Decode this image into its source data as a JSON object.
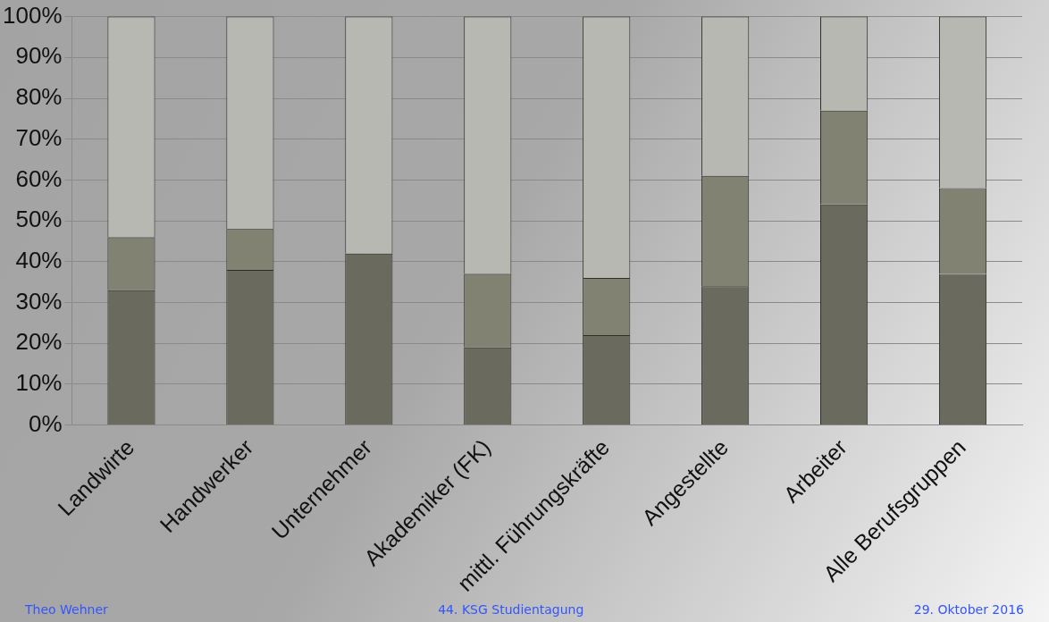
{
  "chart_data": {
    "type": "bar",
    "stacked": true,
    "categories": [
      "Landwirte",
      "Handwerker",
      "Unternehmer",
      "Akademiker (FK)",
      "mittl. Führungskräfte",
      "Angestellte",
      "Arbeiter",
      "Alle Berufsgruppen"
    ],
    "series": [
      {
        "color": "#6a6a5e",
        "values": [
          33,
          38,
          42,
          19,
          22,
          34,
          54,
          37
        ]
      },
      {
        "color": "#828273",
        "values": [
          13,
          10,
          0,
          18,
          14,
          27,
          23,
          21
        ]
      },
      {
        "color": "#b8b8b3",
        "values": [
          54,
          52,
          58,
          63,
          64,
          39,
          23,
          42
        ]
      }
    ],
    "ylim": [
      0,
      100
    ],
    "yticks": [
      {
        "value": 0,
        "label": "0%"
      },
      {
        "value": 10,
        "label": "10%"
      },
      {
        "value": 20,
        "label": "20%"
      },
      {
        "value": 30,
        "label": "30%"
      },
      {
        "value": 40,
        "label": "40%"
      },
      {
        "value": 50,
        "label": "50%"
      },
      {
        "value": 60,
        "label": "60%"
      },
      {
        "value": 70,
        "label": "70%"
      },
      {
        "value": 80,
        "label": "80%"
      },
      {
        "value": 90,
        "label": "90%"
      },
      {
        "value": 100,
        "label": "100%"
      }
    ],
    "grid": "y",
    "legend": false,
    "annotations": [
      "Theo Wehner",
      "44. KSG Studientagung",
      "29. Oktober 2016"
    ]
  }
}
